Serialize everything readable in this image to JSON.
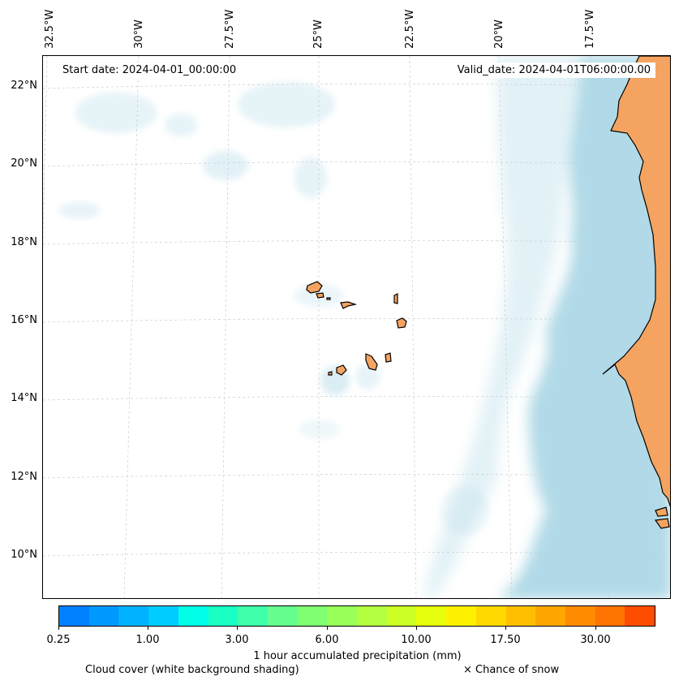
{
  "map": {
    "start_date": "Start date: 2024-04-01_00:00:00",
    "valid_date": "Valid_date: 2024-04-01T06:00:00.00",
    "lon_labels": [
      "32.5°W",
      "30°W",
      "27.5°W",
      "25°W",
      "22.5°W",
      "20°W",
      "17.5°W"
    ],
    "lat_labels": [
      "22°N",
      "20°N",
      "18°N",
      "16°N",
      "14°N",
      "12°N",
      "10°N"
    ],
    "colors": {
      "land": "#f4a460",
      "cloud": "#add8e6",
      "coast": "#000000",
      "grid": "#cccccc"
    }
  },
  "legend": {
    "precip_title": "1 hour accumulated precipitation (mm)",
    "cloud_label": "Cloud cover (white background shading)",
    "snow_label": "× Chance of snow",
    "tick_labels": [
      "0.25",
      "1.00",
      "3.00",
      "6.00",
      "10.00",
      "17.50",
      "30.00"
    ],
    "colorbar_colors": [
      "#0080ff",
      "#0099ff",
      "#00b2ff",
      "#00ccff",
      "#00ffe6",
      "#1affc4",
      "#40ffab",
      "#66ff8f",
      "#80ff73",
      "#99ff59",
      "#b3ff40",
      "#ccff26",
      "#e6ff0d",
      "#fff200",
      "#ffd900",
      "#ffbf00",
      "#ffa600",
      "#ff8c00",
      "#ff7300",
      "#ff4d00"
    ]
  }
}
